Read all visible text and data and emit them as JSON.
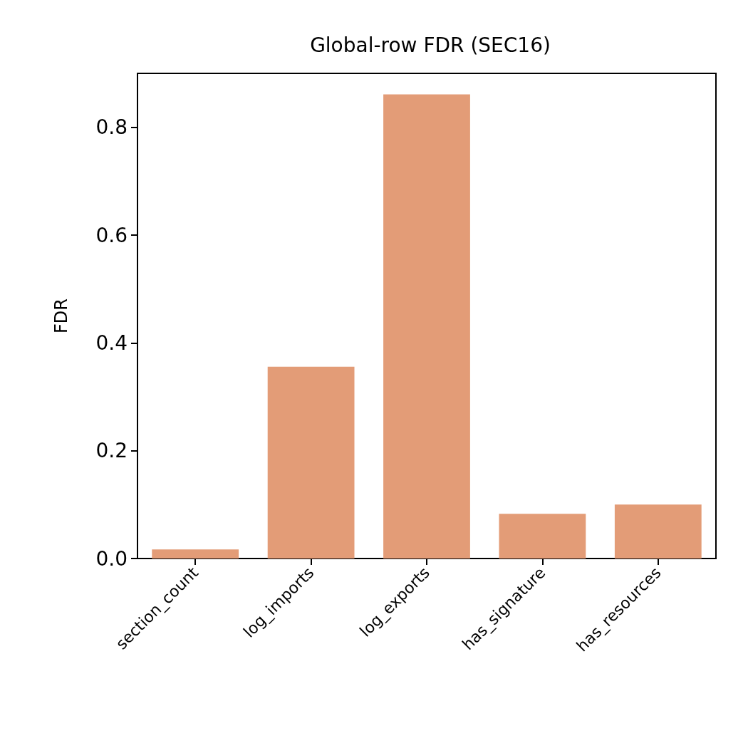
{
  "chart_data": {
    "type": "bar",
    "title": "Global-row FDR (SEC16)",
    "ylabel": "FDR",
    "categories": [
      "section_count",
      "log_imports",
      "log_exports",
      "has_signature",
      "has_resources"
    ],
    "values": [
      0.017,
      0.356,
      0.861,
      0.083,
      0.1
    ],
    "color": "#e39c77",
    "ylim": [
      0,
      0.9
    ],
    "yticks": [
      {
        "value": 0,
        "label": "0.0"
      },
      {
        "value": 0.2,
        "label": "0.2"
      },
      {
        "value": 0.4,
        "label": "0.4"
      },
      {
        "value": 0.6,
        "label": "0.6"
      },
      {
        "value": 0.8,
        "label": "0.8"
      }
    ],
    "grid": false
  }
}
